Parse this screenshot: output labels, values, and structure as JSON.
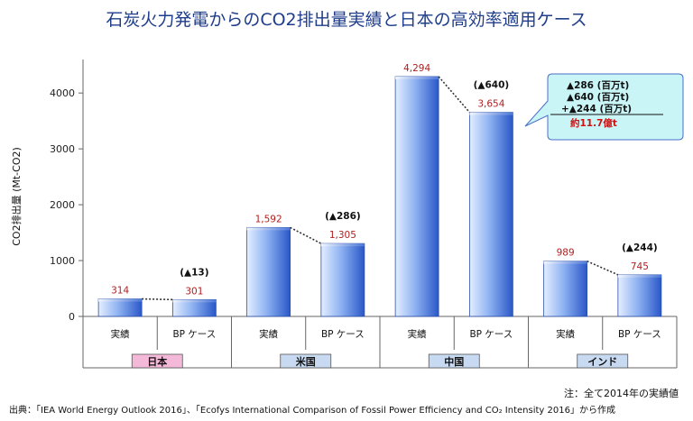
{
  "chart_data": {
    "type": "bar",
    "title": "石炭火力発電からのCO2排出量実績と日本の高効率適用ケース",
    "ylabel": "CO2排出量 (Mt-CO2)",
    "ylim": [
      0,
      4600
    ],
    "yticks": [
      0,
      1000,
      2000,
      3000,
      4000
    ],
    "grid": false,
    "groups": [
      {
        "name": "日本",
        "color": "#f4b8d8",
        "bars": [
          {
            "label": "実績",
            "value": 314,
            "value_label": "314"
          },
          {
            "label": "BP ケース",
            "value": 301,
            "value_label": "301"
          }
        ],
        "delta_label": "(▲13)"
      },
      {
        "name": "米国",
        "color": "#c8daf2",
        "bars": [
          {
            "label": "実績",
            "value": 1592,
            "value_label": "1,592"
          },
          {
            "label": "BP ケース",
            "value": 1305,
            "value_label": "1,305"
          }
        ],
        "delta_label": "(▲286)"
      },
      {
        "name": "中国",
        "color": "#c8daf2",
        "bars": [
          {
            "label": "実績",
            "value": 4294,
            "value_label": "4,294"
          },
          {
            "label": "BP ケース",
            "value": 3654,
            "value_label": "3,654"
          }
        ],
        "delta_label": "(▲640)"
      },
      {
        "name": "インド",
        "color": "#c8daf2",
        "bars": [
          {
            "label": "実績",
            "value": 989,
            "value_label": "989"
          },
          {
            "label": "BP ケース",
            "value": 745,
            "value_label": "745"
          }
        ],
        "delta_label": "(▲244)"
      }
    ],
    "callout": {
      "lines": [
        "▲286 (百万t)",
        "▲640 (百万t)",
        "+▲244 (百万t)"
      ],
      "total": "約11.7億t"
    },
    "note": "注：全て2014年の実績値",
    "source": "出典：「IEA World Energy Outlook 2016」、「Ecofys International Comparison of Fossil Power Efficiency and CO₂ Intensity 2016」から作成"
  },
  "colors": {
    "title": "#1f3d8a",
    "bar_light": "#e4eeff",
    "bar_mid": "#8fb3f2",
    "bar_dark": "#2a57c8",
    "value_label": "#b02020",
    "callout_fill": "#c9f5f7",
    "callout_stroke": "#4a6fc8",
    "callout_total": "#d01010"
  }
}
